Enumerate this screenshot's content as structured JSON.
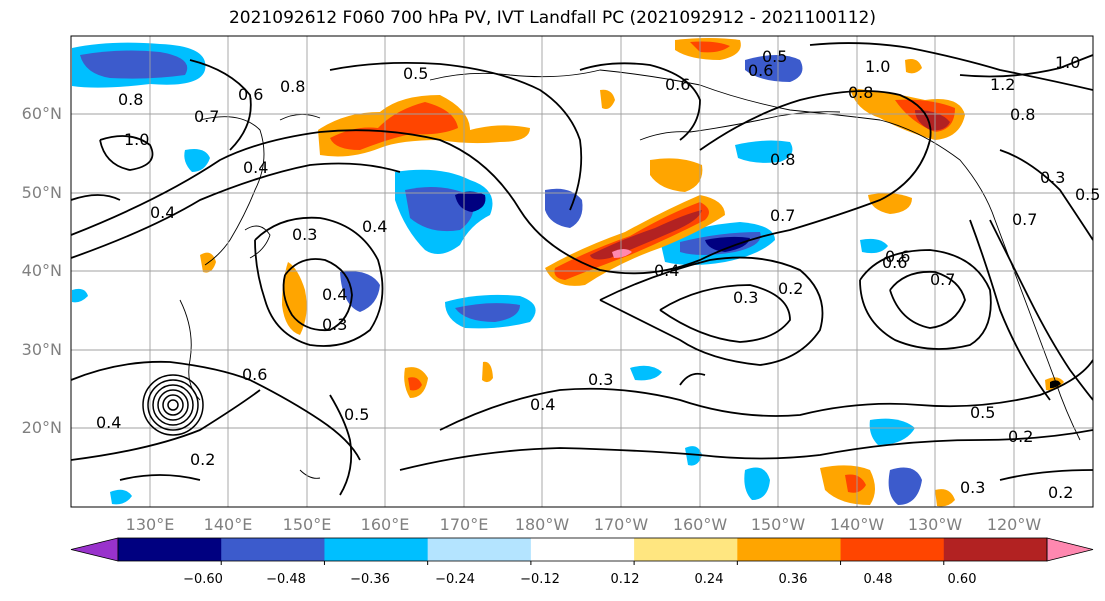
{
  "title": "2021092612 F060 700 hPa PV, IVT Landfall PC (2021092912 - 2021100112)",
  "lat_labels": [
    "60°N",
    "50°N",
    "40°N",
    "30°N",
    "20°N"
  ],
  "lon_labels": [
    "130°E",
    "140°E",
    "150°E",
    "160°E",
    "170°E",
    "180°W",
    "170°W",
    "160°W",
    "150°W",
    "140°W",
    "130°W",
    "120°W"
  ],
  "colorbar": {
    "ticks": [
      "−0.60",
      "−0.48",
      "−0.36",
      "−0.24",
      "−0.12",
      "0.12",
      "0.24",
      "0.36",
      "0.48",
      "0.60"
    ],
    "colors": [
      "#9932cc",
      "#000080",
      "#3c5bcc",
      "#00bfff",
      "#b4e4ff",
      "#ffffff",
      "#ffe680",
      "#ffa500",
      "#ff4500",
      "#b22222",
      "#ff88b0"
    ]
  },
  "contour_labels": [
    "0.5",
    "0.6",
    "0.6",
    "0.8",
    "0.7",
    "1.0",
    "0.8",
    "0.4",
    "0.4",
    "0.3",
    "0.4",
    "0.3",
    "0.4",
    "0.8",
    "0.7",
    "0.5",
    "0.6",
    "0.8",
    "0.7",
    "0.6",
    "0.4",
    "0.3",
    "0.2",
    "0.5",
    "0.2",
    "0.3",
    "0.2",
    "1.0",
    "1.2",
    "1.0",
    "0.7",
    "0.8",
    "0.3",
    "0.5",
    "0.6",
    "0.6",
    "0.5",
    "0.4",
    "0.3",
    "0.2",
    "0.4"
  ]
}
